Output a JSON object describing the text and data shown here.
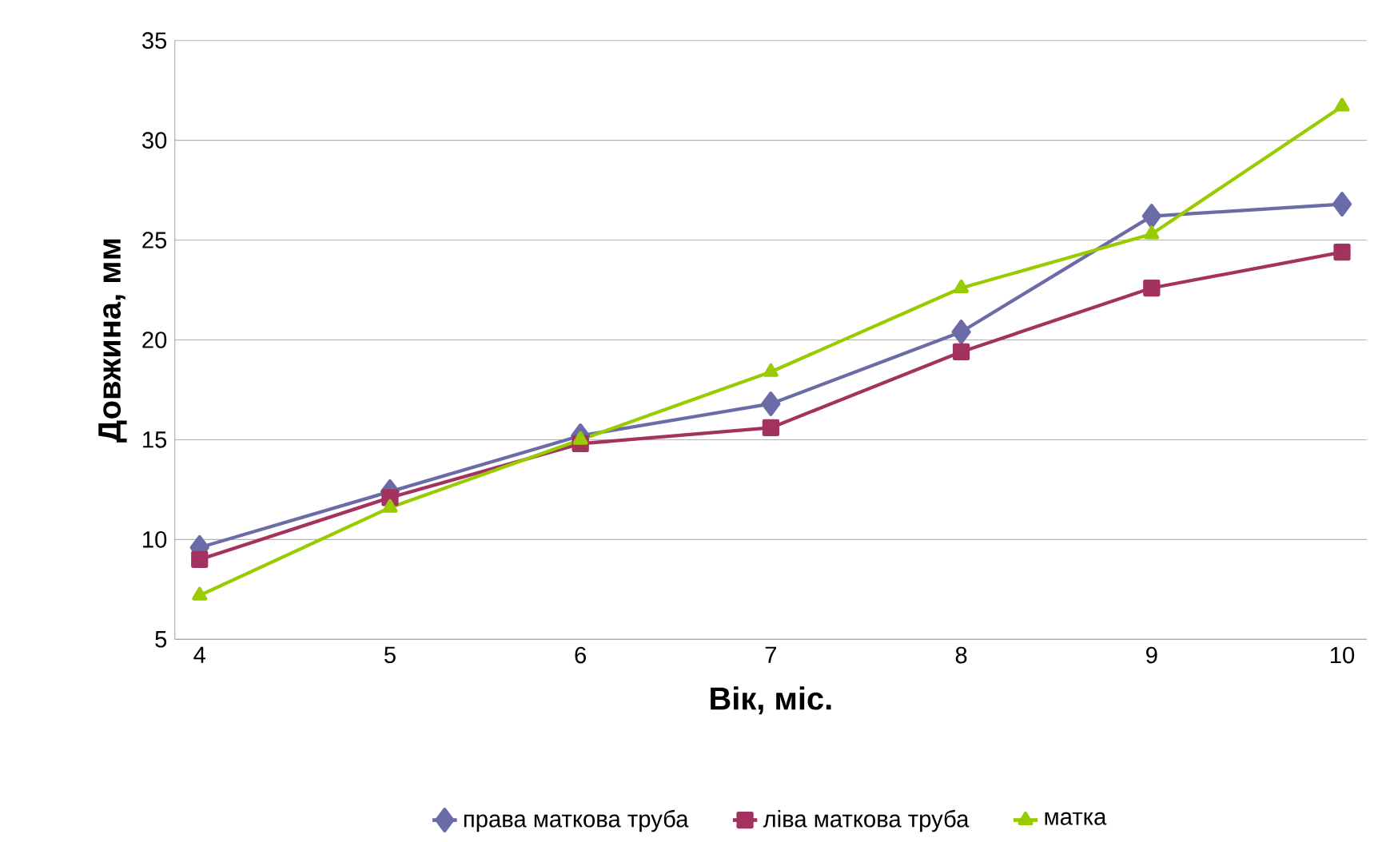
{
  "chart_data": {
    "type": "line",
    "xlabel": "Вік, міс.",
    "ylabel": "Довжина, мм",
    "categories": [
      "4",
      "5",
      "6",
      "7",
      "8",
      "9",
      "10"
    ],
    "series": [
      {
        "name": "права маткова труба",
        "color": "#6b6ba8",
        "marker": "diamond",
        "values": [
          9.6,
          12.4,
          15.2,
          16.8,
          20.4,
          26.2,
          26.8
        ]
      },
      {
        "name": "ліва маткова труба",
        "color": "#a3325f",
        "marker": "square",
        "values": [
          9.0,
          12.1,
          14.8,
          15.6,
          19.4,
          22.6,
          24.4
        ]
      },
      {
        "name": "матка",
        "color": "#99cc00",
        "marker": "triangle",
        "values": [
          7.2,
          11.6,
          15.0,
          18.4,
          22.6,
          25.3,
          31.7
        ]
      }
    ],
    "ylim": [
      5,
      35
    ],
    "yticks": [
      5,
      10,
      15,
      20,
      25,
      30,
      35
    ],
    "grid": "y",
    "legend": "bottom"
  }
}
